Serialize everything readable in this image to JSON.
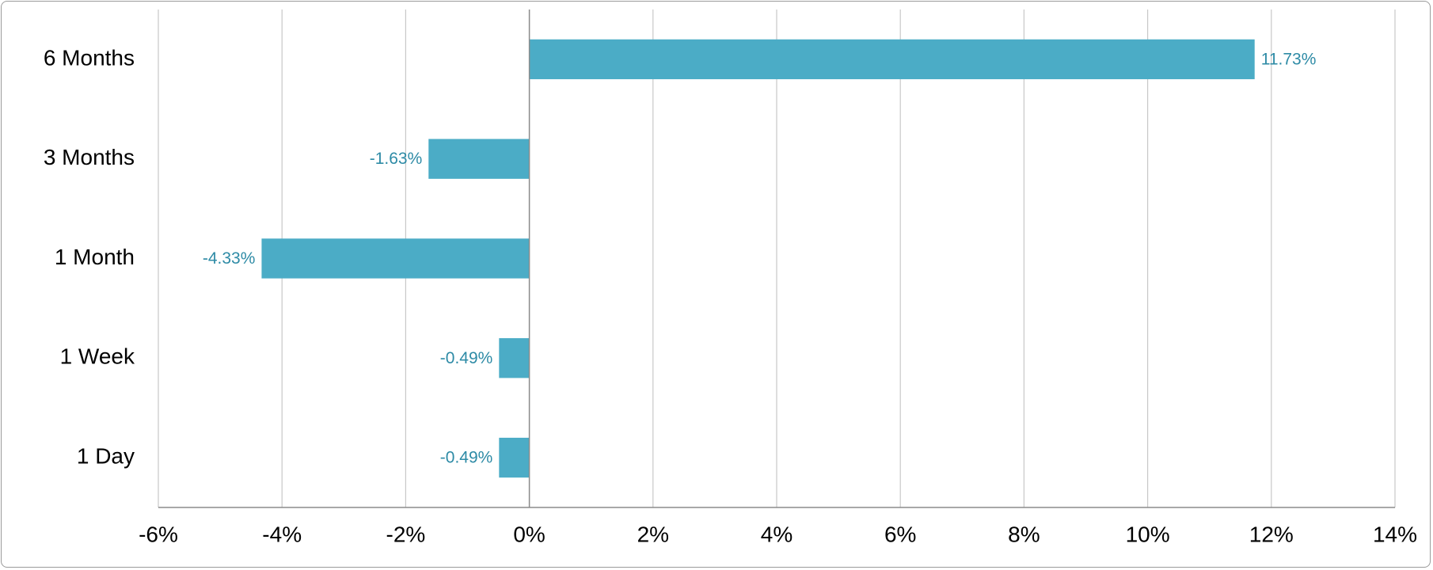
{
  "chart_data": {
    "type": "bar",
    "orientation": "horizontal",
    "categories": [
      "6 Months",
      "3 Months",
      "1 Month",
      "1 Week",
      "1 Day"
    ],
    "values": [
      11.73,
      -1.63,
      -4.33,
      -0.49,
      -0.49
    ],
    "value_labels": [
      "11.73%",
      "-1.63%",
      "-4.33%",
      "-0.49%",
      "-0.49%"
    ],
    "color": "#4bacc6",
    "label_color": "#2e8ba6",
    "xlim": [
      -6,
      14
    ],
    "xticks": [
      {
        "value": -6,
        "label": "-6%"
      },
      {
        "value": -4,
        "label": "-4%"
      },
      {
        "value": -2,
        "label": "-2%"
      },
      {
        "value": 0,
        "label": "0%"
      },
      {
        "value": 2,
        "label": "2%"
      },
      {
        "value": 4,
        "label": "4%"
      },
      {
        "value": 6,
        "label": "6%"
      },
      {
        "value": 8,
        "label": "8%"
      },
      {
        "value": 10,
        "label": "10%"
      },
      {
        "value": 12,
        "label": "12%"
      },
      {
        "value": 14,
        "label": "14%"
      }
    ],
    "grid": true
  }
}
